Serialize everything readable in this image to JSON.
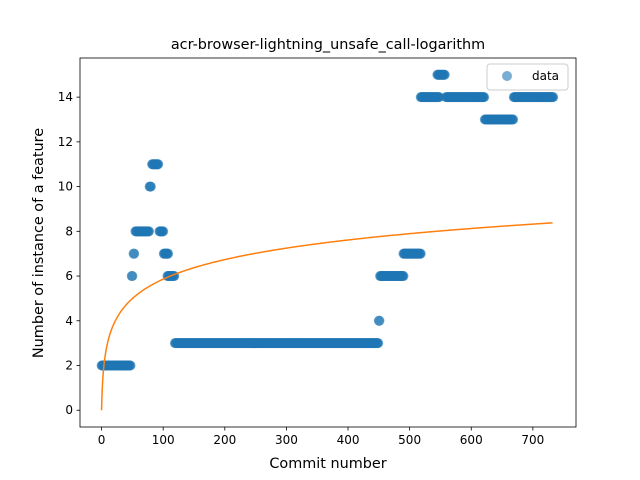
{
  "chart_data": {
    "type": "scatter",
    "title": "acr-browser-lightning_unsafe_call-logarithm",
    "xlabel": "Commit number",
    "ylabel": "Number of instance of a feature",
    "xlim": [
      -35,
      770
    ],
    "ylim": [
      -0.75,
      15.75
    ],
    "xticks": [
      0,
      100,
      200,
      300,
      400,
      500,
      600,
      700
    ],
    "yticks": [
      0,
      2,
      4,
      6,
      8,
      10,
      12,
      14
    ],
    "grid": false,
    "legend": {
      "placement": "top-right",
      "entries": [
        "data"
      ]
    },
    "colors": {
      "data": "#1f77b4",
      "fit": "#ff7f0e"
    },
    "series": [
      {
        "name": "data",
        "kind": "scatter",
        "runs": [
          {
            "x_start": 0,
            "x_end": 47,
            "y": 2
          },
          {
            "x_start": 49,
            "x_end": 50,
            "y": 6
          },
          {
            "x_start": 52,
            "x_end": 53,
            "y": 7
          },
          {
            "x_start": 55,
            "x_end": 77,
            "y": 8
          },
          {
            "x_start": 78,
            "x_end": 80,
            "y": 10
          },
          {
            "x_start": 82,
            "x_end": 92,
            "y": 11
          },
          {
            "x_start": 94,
            "x_end": 100,
            "y": 8
          },
          {
            "x_start": 101,
            "x_end": 108,
            "y": 7
          },
          {
            "x_start": 107,
            "x_end": 118,
            "y": 6
          },
          {
            "x_start": 119,
            "x_end": 449,
            "y": 3
          },
          {
            "x_start": 450,
            "x_end": 451,
            "y": 4
          },
          {
            "x_start": 452,
            "x_end": 490,
            "y": 6
          },
          {
            "x_start": 490,
            "x_end": 518,
            "y": 7
          },
          {
            "x_start": 518,
            "x_end": 548,
            "y": 14
          },
          {
            "x_start": 545,
            "x_end": 557,
            "y": 15
          },
          {
            "x_start": 559,
            "x_end": 621,
            "y": 14
          },
          {
            "x_start": 622,
            "x_end": 668,
            "y": 13
          },
          {
            "x_start": 669,
            "x_end": 733,
            "y": 14
          }
        ]
      },
      {
        "kind": "line",
        "model": "log",
        "a": 1.27,
        "x_range": [
          0,
          733
        ],
        "y_at_end": 8.4
      }
    ]
  }
}
